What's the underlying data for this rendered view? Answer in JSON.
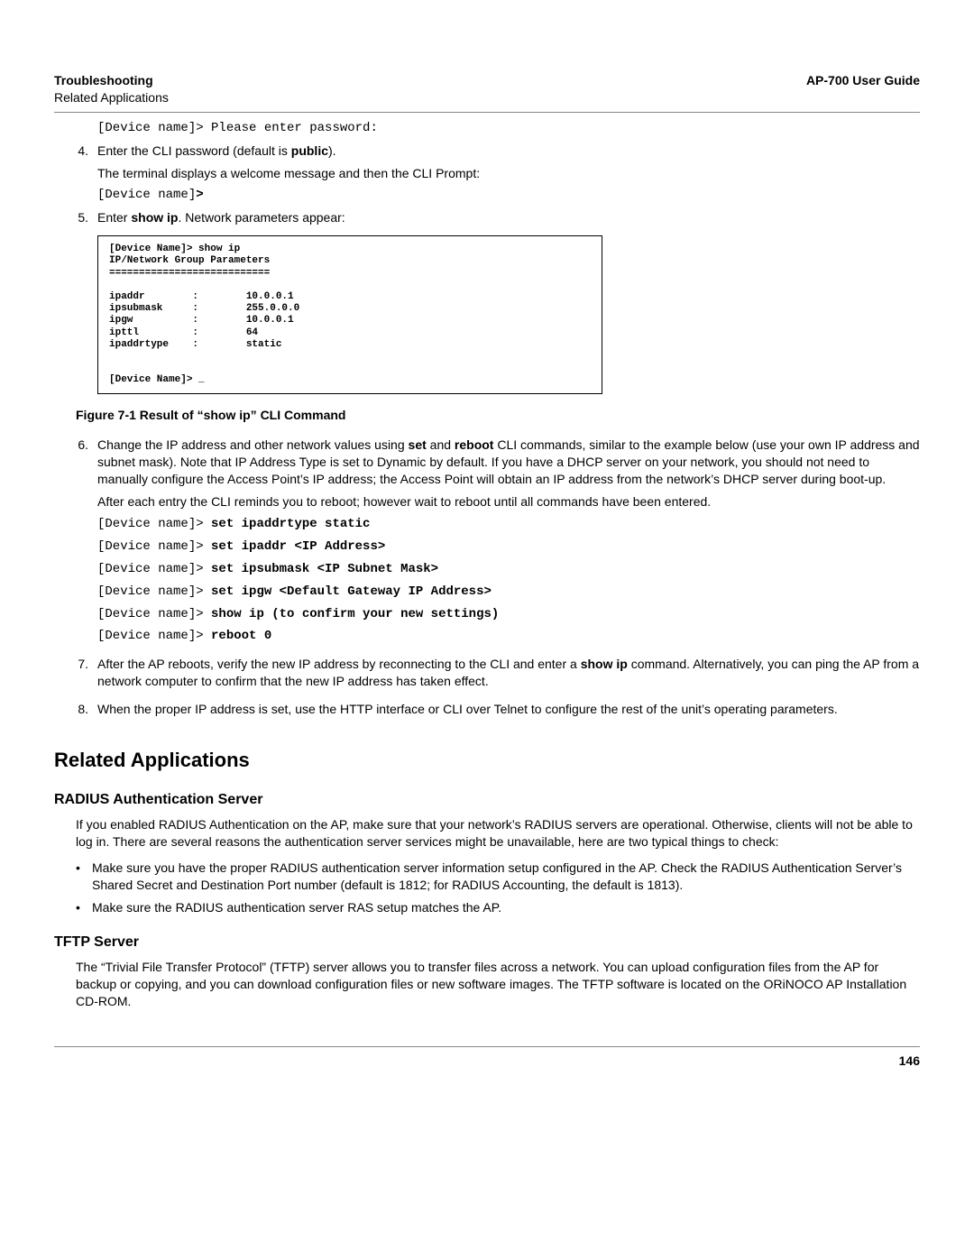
{
  "header": {
    "left_bold": "Troubleshooting",
    "left_sub": "Related Applications",
    "right": "AP-700 User Guide"
  },
  "top_mono": "[Device name]> Please enter password:",
  "item4": {
    "num": "4.",
    "line1a": "Enter the CLI password (default is ",
    "line1b": "public",
    "line1c": ").",
    "line2": "The terminal displays a welcome message and then the CLI Prompt:",
    "mono_prefix": "[Device name]",
    "mono_bold": ">"
  },
  "item5": {
    "num": "5.",
    "line_a": "Enter ",
    "line_b": "show ip",
    "line_c": ". Network parameters appear:"
  },
  "figure_box": "[Device Name]> show ip\nIP/Network Group Parameters\n===========================\n\nipaddr        :        10.0.0.1\nipsubmask     :        255.0.0.0\nipgw          :        10.0.0.1\nipttl         :        64\nipaddrtype    :        static\n\n\n[Device Name]> _",
  "figure_caption": "Figure 7-1 Result of “show ip” CLI Command",
  "item6": {
    "num": "6.",
    "p1_a": "Change the IP address and other network values using ",
    "p1_b": "set",
    "p1_c": " and ",
    "p1_d": "reboot",
    "p1_e": " CLI commands, similar to the example below (use your own IP address and subnet mask). Note that IP Address Type is set to Dynamic by default. If you have a DHCP server on your network, you should not need to manually configure the Access Point’s IP address; the Access Point will obtain an IP address from the network’s DHCP server during boot-up.",
    "p2": "After each entry the CLI reminds you to reboot; however wait to reboot until all commands have been entered.",
    "cli": [
      {
        "prefix": "[Device name]> ",
        "bold": "set ipaddrtype static"
      },
      {
        "prefix": "[Device name]> ",
        "bold": "set ipaddr <IP Address>"
      },
      {
        "prefix": "[Device name]> ",
        "bold": "set ipsubmask <IP Subnet Mask>"
      },
      {
        "prefix": "[Device name]> ",
        "bold": "set ipgw <Default Gateway IP Address>"
      },
      {
        "prefix": "[Device name]> ",
        "bold": "show ip (to confirm your new settings)"
      },
      {
        "prefix": "[Device name]> ",
        "bold": "reboot 0"
      }
    ]
  },
  "item7": {
    "num": "7.",
    "text_a": "After the AP reboots, verify the new IP address by reconnecting to the CLI and enter a ",
    "text_b": "show ip",
    "text_c": " command. Alternatively, you can ping the AP from a network computer to confirm that the new IP address has taken effect."
  },
  "item8": {
    "num": "8.",
    "text": "When the proper IP address is set, use the HTTP interface or CLI over Telnet to configure the rest of the unit’s operating parameters."
  },
  "section_related": "Related Applications",
  "radius": {
    "heading": "RADIUS Authentication Server",
    "p1": "If you enabled RADIUS Authentication on the AP, make sure that your network’s RADIUS servers are operational. Otherwise, clients will not be able to log in. There are several reasons the authentication server services might be unavailable, here are two typical things to check:",
    "bullets": [
      "Make sure you have the proper RADIUS authentication server information setup configured in the AP. Check the RADIUS Authentication Server’s Shared Secret and Destination Port number (default is 1812; for RADIUS Accounting, the default is 1813).",
      "Make sure the RADIUS authentication server RAS setup matches the AP."
    ]
  },
  "tftp": {
    "heading": "TFTP Server",
    "p1": "The “Trivial File Transfer Protocol” (TFTP) server allows you to transfer files across a network. You can upload configuration files from the AP for backup or copying, and you can download configuration files or new software images. The TFTP software is located on the ORiNOCO AP Installation CD-ROM."
  },
  "page_number": "146"
}
